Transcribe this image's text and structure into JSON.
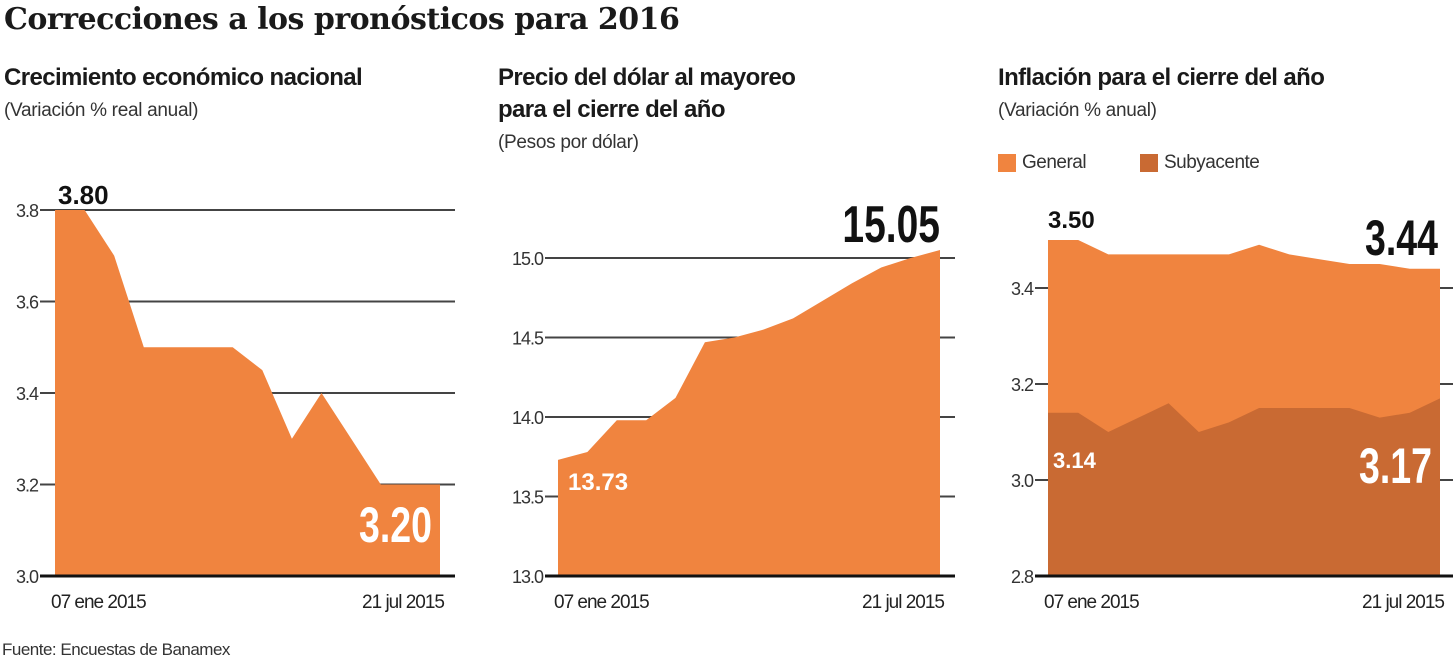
{
  "title": "Correcciones a los pronósticos para 2016",
  "source": "Fuente: Encuestas de Banamex",
  "colors": {
    "general": "#f0843f",
    "subyacente": "#c96a33",
    "grid": "#444444"
  },
  "chart_data": [
    {
      "type": "area",
      "title": "Crecimiento económico nacional",
      "subtitle": "(Variación % real anual)",
      "x_labels": [
        "07 ene 2015",
        "21 jul 2015"
      ],
      "ylim": [
        3.0,
        3.8
      ],
      "yticks": [
        "3.0",
        "3.2",
        "3.4",
        "3.6",
        "3.8"
      ],
      "grid": true,
      "series": [
        {
          "values": [
            3.8,
            3.8,
            3.7,
            3.5,
            3.5,
            3.5,
            3.5,
            3.45,
            3.3,
            3.4,
            3.3,
            3.2,
            3.2,
            3.2
          ]
        }
      ],
      "annotations": {
        "start": "3.80",
        "end": "3.20"
      }
    },
    {
      "type": "area",
      "title": "Precio del dólar al mayoreo",
      "title2": "para el cierre del año",
      "subtitle": "(Pesos por dólar)",
      "x_labels": [
        "07 ene 2015",
        "21 jul 2015"
      ],
      "ylim": [
        13.0,
        15.0
      ],
      "yticks": [
        "13.0",
        "13.5",
        "14.0",
        "14.5",
        "15.0"
      ],
      "grid": true,
      "series": [
        {
          "values": [
            13.73,
            13.78,
            13.98,
            13.98,
            14.12,
            14.47,
            14.5,
            14.55,
            14.62,
            14.73,
            14.84,
            14.94,
            15.0,
            15.05
          ]
        }
      ],
      "annotations": {
        "start": "13.73",
        "end": "15.05"
      }
    },
    {
      "type": "area",
      "title": "Inflación para el cierre del año",
      "subtitle": "(Variación % anual)",
      "x_labels": [
        "07 ene 2015",
        "21 jul 2015"
      ],
      "ylim": [
        2.8,
        3.4
      ],
      "yticks": [
        "2.8",
        "3.0",
        "3.2",
        "3.4"
      ],
      "grid": true,
      "legend_position": "top-left",
      "series": [
        {
          "name": "General",
          "values": [
            3.5,
            3.5,
            3.47,
            3.47,
            3.47,
            3.47,
            3.47,
            3.49,
            3.47,
            3.46,
            3.45,
            3.45,
            3.44,
            3.44
          ]
        },
        {
          "name": "Subyacente",
          "values": [
            3.14,
            3.14,
            3.1,
            3.13,
            3.16,
            3.1,
            3.12,
            3.15,
            3.15,
            3.15,
            3.15,
            3.13,
            3.14,
            3.17
          ]
        }
      ],
      "annotations": {
        "general_start": "3.50",
        "general_end": "3.44",
        "sub_start": "3.14",
        "sub_end": "3.17"
      }
    }
  ]
}
